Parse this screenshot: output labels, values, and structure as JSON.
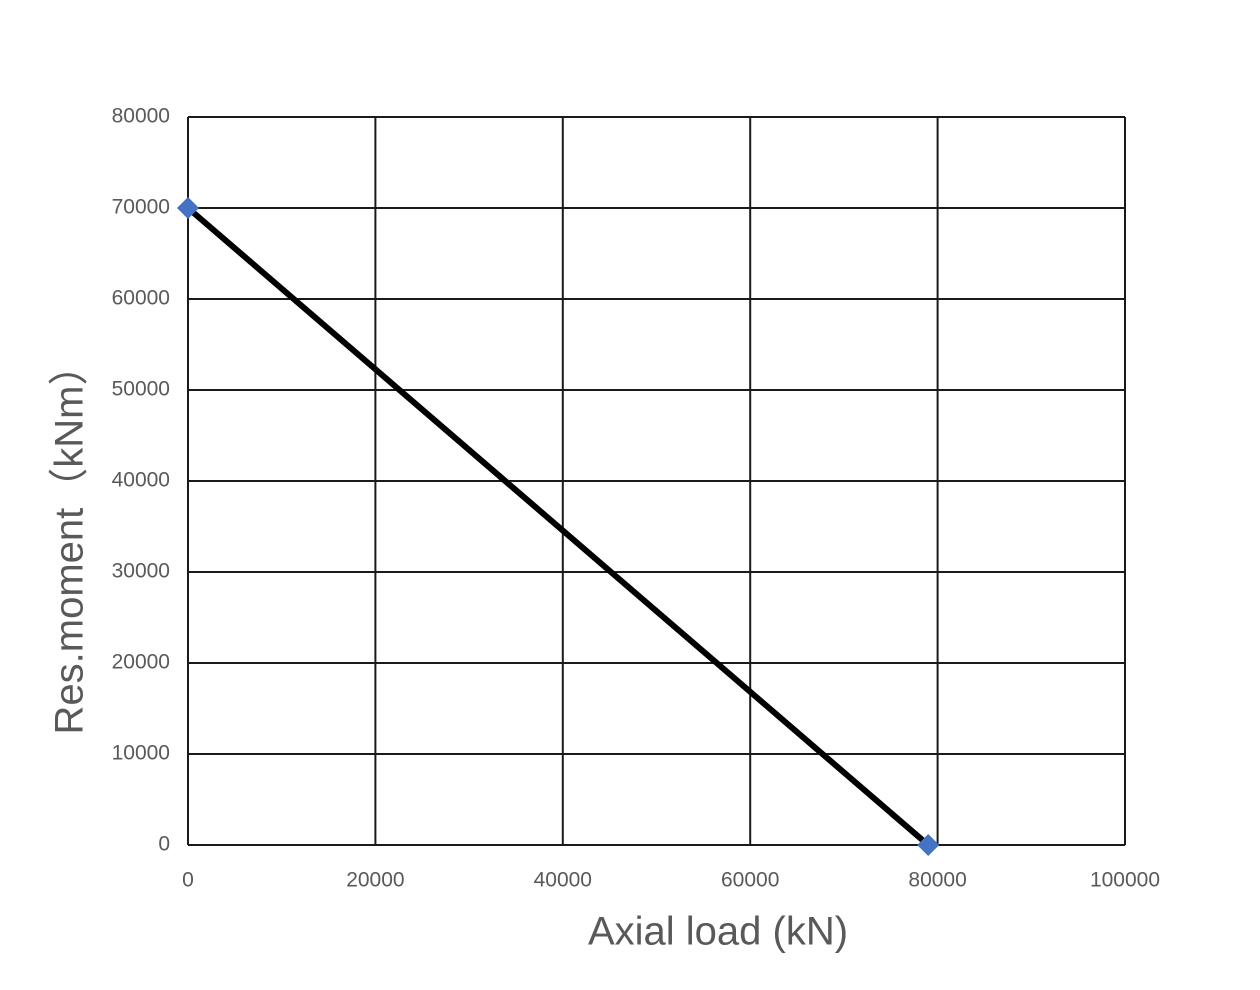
{
  "chart_data": {
    "type": "line",
    "x_label": "Axial load (kN)",
    "y_label": "Res.moment（kNm）",
    "x": [
      0,
      79000
    ],
    "series": [
      {
        "values": [
          70000,
          0
        ],
        "color": "#000000",
        "marker_color": "#4472c4"
      }
    ],
    "xlim": [
      0,
      100000
    ],
    "xticks": [
      0,
      20000,
      40000,
      60000,
      80000,
      100000
    ],
    "ylim": [
      0,
      80000
    ],
    "yticks": [
      0,
      10000,
      20000,
      30000,
      40000,
      50000,
      60000,
      70000,
      80000
    ],
    "grid": true
  }
}
